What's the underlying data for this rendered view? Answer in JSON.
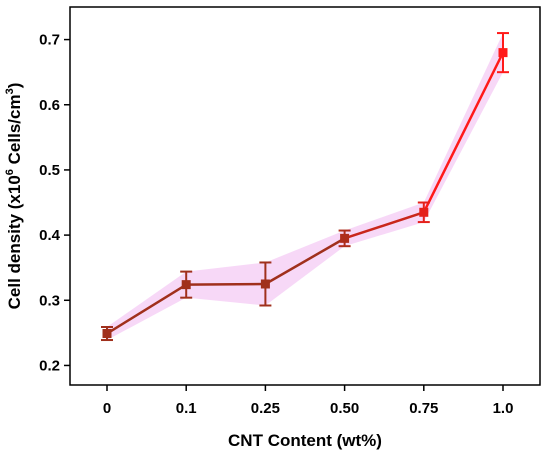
{
  "chart_data": {
    "type": "line",
    "categories": [
      "0",
      "0.1",
      "0.25",
      "0.50",
      "0.75",
      "1.0"
    ],
    "series": [
      {
        "values": [
          0.249,
          0.324,
          0.325,
          0.395,
          0.435,
          0.68
        ],
        "errors": [
          0.01,
          0.02,
          0.033,
          0.012,
          0.015,
          0.03
        ]
      }
    ],
    "xlabel": "CNT Content (wt%)",
    "ylabel": {
      "prefix": "Cell density (x10",
      "sup1": "6",
      "middle": " Cells/cm",
      "sup2": "3",
      "suffix": ")"
    },
    "ylim": [
      0.17,
      0.75
    ],
    "yticks": [
      0.2,
      0.3,
      0.4,
      0.5,
      0.6,
      0.7
    ],
    "ytick_labels": [
      "0.2",
      "0.3",
      "0.4",
      "0.5",
      "0.6",
      "0.7"
    ],
    "grid": false,
    "legend": "none",
    "colors": {
      "start": "#a0301c",
      "end": "#ff1a1a",
      "error_shade": "#f0b8f0",
      "axis": "#000000"
    }
  }
}
